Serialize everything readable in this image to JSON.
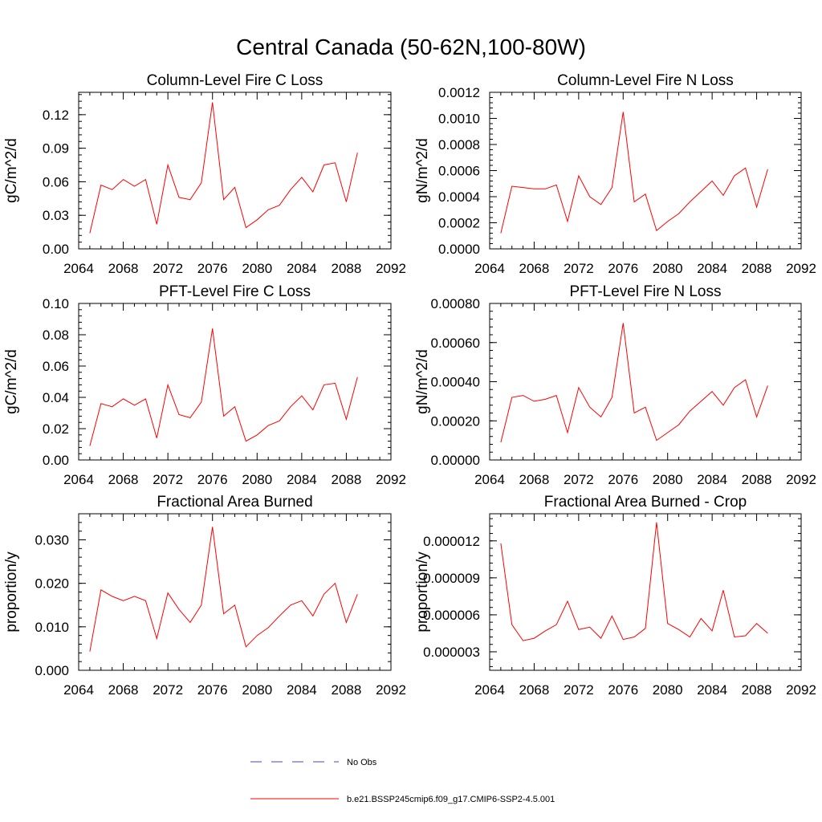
{
  "figure": {
    "title": "Central Canada (50-62N,100-80W)"
  },
  "legend": {
    "entries": [
      {
        "label": "No Obs",
        "color": "#4a4aa8",
        "dash": "dashed"
      },
      {
        "label": "b.e21.BSSP245cmip6.f09_g17.CMIP6-SSP2-4.5.001",
        "color": "#ff0000",
        "dash": "solid"
      }
    ]
  },
  "chart_data": [
    {
      "type": "line",
      "title": "Column-Level Fire C Loss",
      "ylabel": "gC/m^2/d",
      "xlim": [
        2064,
        2092
      ],
      "xticks": [
        "2064",
        "2068",
        "2072",
        "2076",
        "2080",
        "2084",
        "2088",
        "2092"
      ],
      "ylim": [
        0,
        0.14
      ],
      "yticks": [
        "0.00",
        "0.03",
        "0.06",
        "0.09",
        "0.12"
      ],
      "x": [
        2065,
        2066,
        2067,
        2068,
        2069,
        2070,
        2071,
        2072,
        2073,
        2074,
        2075,
        2076,
        2077,
        2078,
        2079,
        2080,
        2081,
        2082,
        2083,
        2084,
        2085,
        2086,
        2087,
        2088,
        2089
      ],
      "series": [
        {
          "name": "b.e21.BSSP245cmip6.f09_g17.CMIP6-SSP2-4.5.001",
          "values": [
            0.014,
            0.057,
            0.053,
            0.062,
            0.056,
            0.062,
            0.022,
            0.075,
            0.046,
            0.044,
            0.059,
            0.131,
            0.044,
            0.055,
            0.019,
            0.026,
            0.035,
            0.039,
            0.053,
            0.064,
            0.051,
            0.075,
            0.077,
            0.042,
            0.086
          ]
        }
      ]
    },
    {
      "type": "line",
      "title": "Column-Level Fire N Loss",
      "ylabel": "gN/m^2/d",
      "xlim": [
        2064,
        2092
      ],
      "xticks": [
        "2064",
        "2068",
        "2072",
        "2076",
        "2080",
        "2084",
        "2088",
        "2092"
      ],
      "ylim": [
        0,
        0.0012
      ],
      "yticks": [
        "0.0000",
        "0.0002",
        "0.0004",
        "0.0006",
        "0.0008",
        "0.0010",
        "0.0012"
      ],
      "x": [
        2065,
        2066,
        2067,
        2068,
        2069,
        2070,
        2071,
        2072,
        2073,
        2074,
        2075,
        2076,
        2077,
        2078,
        2079,
        2080,
        2081,
        2082,
        2083,
        2084,
        2085,
        2086,
        2087,
        2088,
        2089
      ],
      "series": [
        {
          "name": "b.e21.BSSP245cmip6.f09_g17.CMIP6-SSP2-4.5.001",
          "values": [
            0.00012,
            0.00048,
            0.00047,
            0.00046,
            0.00046,
            0.00049,
            0.00021,
            0.00056,
            0.0004,
            0.00034,
            0.00047,
            0.00105,
            0.00036,
            0.00042,
            0.00014,
            0.00021,
            0.00027,
            0.00036,
            0.00044,
            0.00052,
            0.00041,
            0.00056,
            0.00062,
            0.00032,
            0.00061
          ]
        }
      ]
    },
    {
      "type": "line",
      "title": "PFT-Level Fire C Loss",
      "ylabel": "gC/m^2/d",
      "xlim": [
        2064,
        2092
      ],
      "xticks": [
        "2064",
        "2068",
        "2072",
        "2076",
        "2080",
        "2084",
        "2088",
        "2092"
      ],
      "ylim": [
        0,
        0.1
      ],
      "yticks": [
        "0.00",
        "0.02",
        "0.04",
        "0.06",
        "0.08",
        "0.10"
      ],
      "x": [
        2065,
        2066,
        2067,
        2068,
        2069,
        2070,
        2071,
        2072,
        2073,
        2074,
        2075,
        2076,
        2077,
        2078,
        2079,
        2080,
        2081,
        2082,
        2083,
        2084,
        2085,
        2086,
        2087,
        2088,
        2089
      ],
      "series": [
        {
          "name": "b.e21.BSSP245cmip6.f09_g17.CMIP6-SSP2-4.5.001",
          "values": [
            0.009,
            0.036,
            0.034,
            0.039,
            0.035,
            0.039,
            0.014,
            0.048,
            0.029,
            0.027,
            0.037,
            0.084,
            0.028,
            0.034,
            0.012,
            0.016,
            0.022,
            0.025,
            0.034,
            0.041,
            0.032,
            0.048,
            0.049,
            0.026,
            0.053
          ]
        }
      ]
    },
    {
      "type": "line",
      "title": "PFT-Level Fire N Loss",
      "ylabel": "gN/m^2/d",
      "xlim": [
        2064,
        2092
      ],
      "xticks": [
        "2064",
        "2068",
        "2072",
        "2076",
        "2080",
        "2084",
        "2088",
        "2092"
      ],
      "ylim": [
        0,
        0.0008
      ],
      "yticks": [
        "0.00000",
        "0.00020",
        "0.00040",
        "0.00060",
        "0.00080"
      ],
      "x": [
        2065,
        2066,
        2067,
        2068,
        2069,
        2070,
        2071,
        2072,
        2073,
        2074,
        2075,
        2076,
        2077,
        2078,
        2079,
        2080,
        2081,
        2082,
        2083,
        2084,
        2085,
        2086,
        2087,
        2088,
        2089
      ],
      "series": [
        {
          "name": "b.e21.BSSP245cmip6.f09_g17.CMIP6-SSP2-4.5.001",
          "values": [
            9e-05,
            0.00032,
            0.00033,
            0.0003,
            0.00031,
            0.00033,
            0.00014,
            0.00037,
            0.00027,
            0.00022,
            0.00032,
            0.0007,
            0.00024,
            0.00027,
            0.0001,
            0.00014,
            0.00018,
            0.00025,
            0.0003,
            0.00035,
            0.00028,
            0.00037,
            0.00041,
            0.00022,
            0.00038
          ]
        }
      ]
    },
    {
      "type": "line",
      "title": "Fractional Area Burned",
      "ylabel": "proportion/y",
      "xlim": [
        2064,
        2092
      ],
      "xticks": [
        "2064",
        "2068",
        "2072",
        "2076",
        "2080",
        "2084",
        "2088",
        "2092"
      ],
      "ylim": [
        0,
        0.036
      ],
      "yticks": [
        "0.000",
        "0.010",
        "0.020",
        "0.030"
      ],
      "ytickvals": [
        0,
        0.01,
        0.02,
        0.03
      ],
      "x": [
        2065,
        2066,
        2067,
        2068,
        2069,
        2070,
        2071,
        2072,
        2073,
        2074,
        2075,
        2076,
        2077,
        2078,
        2079,
        2080,
        2081,
        2082,
        2083,
        2084,
        2085,
        2086,
        2087,
        2088,
        2089
      ],
      "series": [
        {
          "name": "b.e21.BSSP245cmip6.f09_g17.CMIP6-SSP2-4.5.001",
          "values": [
            0.0043,
            0.0185,
            0.017,
            0.016,
            0.017,
            0.016,
            0.0073,
            0.0178,
            0.014,
            0.011,
            0.015,
            0.033,
            0.013,
            0.015,
            0.0054,
            0.008,
            0.0098,
            0.0125,
            0.015,
            0.016,
            0.0125,
            0.0175,
            0.02,
            0.011,
            0.0175
          ]
        }
      ]
    },
    {
      "type": "line",
      "title": "Fractional Area Burned - Crop",
      "ylabel": "proportion/y",
      "xlim": [
        2064,
        2092
      ],
      "xticks": [
        "2064",
        "2068",
        "2072",
        "2076",
        "2080",
        "2084",
        "2088",
        "2092"
      ],
      "ylim": [
        1.5e-06,
        1.42e-05
      ],
      "yticks": [
        "0.000003",
        "0.000006",
        "0.000009",
        "0.000012"
      ],
      "ytickvals": [
        3e-06,
        6e-06,
        9e-06,
        1.2e-05
      ],
      "x": [
        2065,
        2066,
        2067,
        2068,
        2069,
        2070,
        2071,
        2072,
        2073,
        2074,
        2075,
        2076,
        2077,
        2078,
        2079,
        2080,
        2081,
        2082,
        2083,
        2084,
        2085,
        2086,
        2087,
        2088,
        2089
      ],
      "series": [
        {
          "name": "b.e21.BSSP245cmip6.f09_g17.CMIP6-SSP2-4.5.001",
          "values": [
            1.18e-05,
            5.2e-06,
            3.9e-06,
            4.1e-06,
            4.7e-06,
            5.2e-06,
            7.1e-06,
            4.8e-06,
            5e-06,
            4.1e-06,
            5.9e-06,
            4e-06,
            4.2e-06,
            4.9e-06,
            1.35e-05,
            5.3e-06,
            4.8e-06,
            4.2e-06,
            5.7e-06,
            4.7e-06,
            8e-06,
            4.2e-06,
            4.3e-06,
            5.3e-06,
            4.5e-06
          ]
        }
      ]
    }
  ]
}
